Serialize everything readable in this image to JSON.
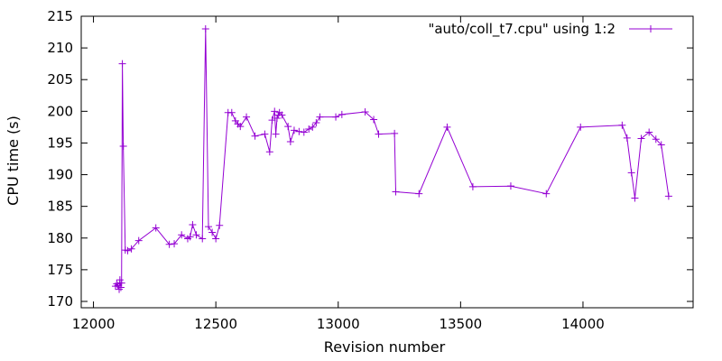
{
  "chart_data": {
    "type": "line",
    "title": "",
    "xlabel": "Revision number",
    "ylabel": "CPU time (s)",
    "xlim": [
      11950,
      14450
    ],
    "ylim": [
      169,
      215
    ],
    "x_ticks": [
      12000,
      12500,
      13000,
      13500,
      14000
    ],
    "y_ticks": [
      170,
      175,
      180,
      185,
      190,
      195,
      200,
      205,
      210,
      215
    ],
    "grid": false,
    "legend_position": "top-right",
    "series_color": "#9400d3",
    "marker": "plus",
    "series": [
      {
        "name": "\"auto/coll_t7.cpu\" using 1:2",
        "x": [
          12090,
          12095,
          12100,
          12105,
          12108,
          12112,
          12115,
          12118,
          12122,
          12130,
          12140,
          12155,
          12185,
          12255,
          12310,
          12330,
          12360,
          12385,
          12395,
          12405,
          12420,
          12445,
          12458,
          12470,
          12485,
          12500,
          12515,
          12550,
          12565,
          12580,
          12590,
          12600,
          12625,
          12660,
          12700,
          12720,
          12730,
          12740,
          12745,
          12750,
          12755,
          12760,
          12770,
          12795,
          12805,
          12820,
          12840,
          12860,
          12880,
          12895,
          12910,
          12925,
          12990,
          13015,
          13110,
          13145,
          13165,
          13230,
          13235,
          13330,
          13445,
          13550,
          13705,
          13850,
          13990,
          14160,
          14180,
          14198,
          14212,
          14238,
          14270,
          14298,
          14320,
          14350
        ],
        "y": [
          172.4,
          172.8,
          172.5,
          171.9,
          173.4,
          172.2,
          172.9,
          207.5,
          194.5,
          178.1,
          178.0,
          178.3,
          179.6,
          181.6,
          179.0,
          179.1,
          180.5,
          179.9,
          180.2,
          182.1,
          180.5,
          179.9,
          213.0,
          181.8,
          180.9,
          179.9,
          182.0,
          199.8,
          199.8,
          198.5,
          198.0,
          197.6,
          199.1,
          196.1,
          196.4,
          193.6,
          198.6,
          200.0,
          196.4,
          198.9,
          199.4,
          199.8,
          199.4,
          197.6,
          195.2,
          197.0,
          196.8,
          196.7,
          197.2,
          197.5,
          198.2,
          199.1,
          199.1,
          199.5,
          199.9,
          198.7,
          196.4,
          196.5,
          187.3,
          187.0,
          197.5,
          188.1,
          188.2,
          187.0,
          197.5,
          197.8,
          195.8,
          190.3,
          186.3,
          195.7,
          196.7,
          195.6,
          194.7,
          186.6
        ]
      }
    ]
  }
}
